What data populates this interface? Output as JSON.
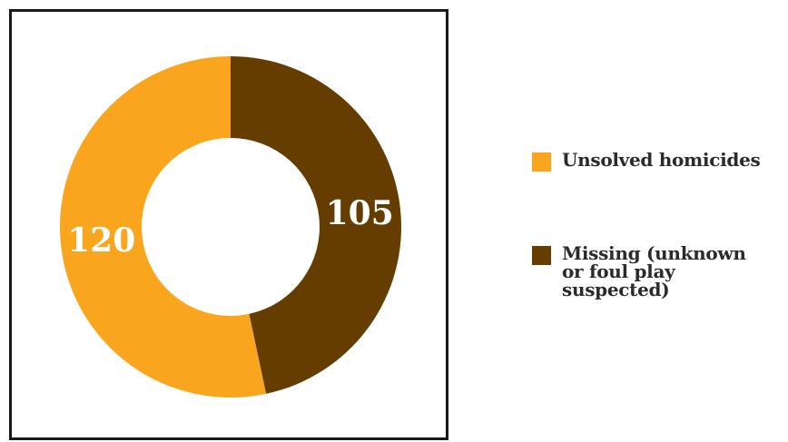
{
  "chart_data": {
    "type": "pie",
    "donut": true,
    "title": "",
    "slices": [
      {
        "label": "Unsolved homicides",
        "value": 120,
        "color": "#f9a51e"
      },
      {
        "label": "Missing (unknown or foul play suspected)",
        "value": 105,
        "color": "#663d00"
      }
    ],
    "legend_position": "right"
  },
  "legend": {
    "items": [
      {
        "label": "Unsolved homicides"
      },
      {
        "label": "Missing (unknown or foul play suspected)"
      }
    ]
  }
}
